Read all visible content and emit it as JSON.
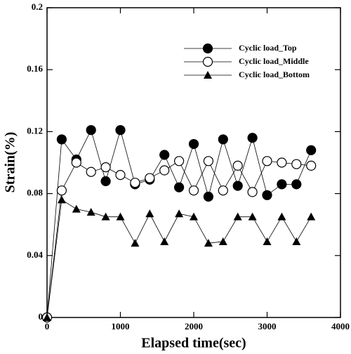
{
  "chart_data": {
    "type": "line",
    "x_label": "Elapsed time(sec)",
    "y_label": "Strain(%)",
    "x": [
      0,
      200,
      400,
      600,
      800,
      1000,
      1200,
      1400,
      1600,
      1800,
      2000,
      2200,
      2400,
      2600,
      2800,
      3000,
      3200,
      3400,
      3600
    ],
    "series": [
      {
        "name": "Cyclic load_Top",
        "color": "#000000",
        "marker": "circle-filled",
        "values": [
          0,
          0.115,
          0.102,
          0.121,
          0.088,
          0.121,
          0.086,
          0.089,
          0.105,
          0.084,
          0.112,
          0.078,
          0.115,
          0.085,
          0.116,
          0.079,
          0.086,
          0.086,
          0.108
        ]
      },
      {
        "name": "Cyclic load_Middle",
        "color": "#000000",
        "marker": "circle-open",
        "values": [
          0,
          0.082,
          0.1,
          0.094,
          0.097,
          0.092,
          0.087,
          0.09,
          0.095,
          0.101,
          0.082,
          0.101,
          0.082,
          0.098,
          0.081,
          0.101,
          0.1,
          0.099,
          0.098
        ]
      },
      {
        "name": "Cyclic load_Bottom",
        "color": "#000000",
        "marker": "triangle",
        "values": [
          0,
          0.076,
          0.07,
          0.068,
          0.065,
          0.065,
          0.048,
          0.067,
          0.049,
          0.067,
          0.065,
          0.048,
          0.049,
          0.065,
          0.065,
          0.049,
          0.065,
          0.049,
          0.065
        ]
      }
    ],
    "xlim": [
      0,
      4000
    ],
    "xticks": [
      0,
      1000,
      2000,
      3000,
      4000
    ],
    "ylim": [
      0,
      0.2
    ],
    "yticks": [
      0,
      0.04,
      0.08,
      0.12,
      0.16,
      0.2
    ],
    "grid": false,
    "legend": "upper right"
  }
}
